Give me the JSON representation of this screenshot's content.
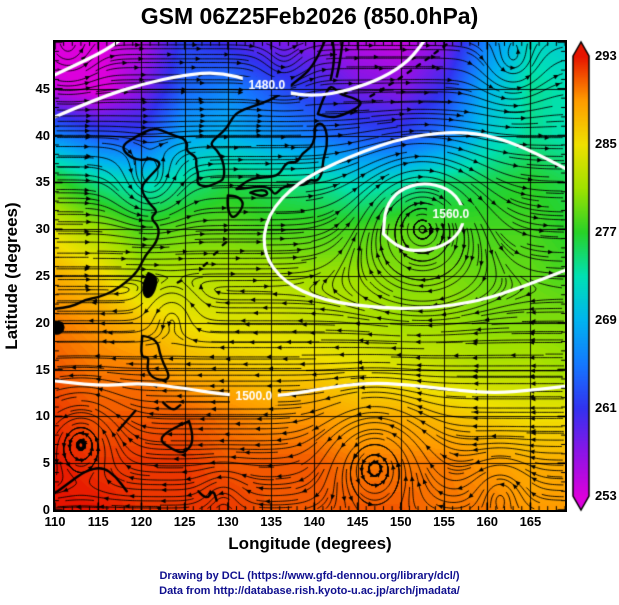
{
  "title": "GSM 06Z25Feb2026 (850.0hPa)",
  "axes": {
    "xlabel": "Longitude (degrees)",
    "ylabel": "Latitude (degrees)",
    "x_ticks": [
      110,
      115,
      120,
      125,
      130,
      135,
      140,
      145,
      150,
      155,
      160,
      165
    ],
    "y_ticks": [
      0,
      5,
      10,
      15,
      20,
      25,
      30,
      35,
      40,
      45
    ],
    "x_range": [
      110,
      169
    ],
    "y_range": [
      0,
      50
    ]
  },
  "colorbar": {
    "min": 253,
    "max": 293,
    "ticks": [
      293,
      285,
      277,
      269,
      261,
      253
    ],
    "stops": [
      [
        253,
        "#dc00dc"
      ],
      [
        257,
        "#8c14e6"
      ],
      [
        261,
        "#3232f0"
      ],
      [
        265,
        "#1478ff"
      ],
      [
        269,
        "#00b4f0"
      ],
      [
        273,
        "#00e1b4"
      ],
      [
        277,
        "#28d228"
      ],
      [
        281,
        "#a0e100"
      ],
      [
        285,
        "#f0e100"
      ],
      [
        289,
        "#ff9b00"
      ],
      [
        293,
        "#e61400"
      ]
    ]
  },
  "footer": {
    "line1": "Drawing by DCL (https://www.gfd-dennou.org/library/dcl/)",
    "line2": "Data from http://database.rish.kyoto-u.ac.jp/arch/jmadata/"
  },
  "chart_data": {
    "type": "heatmap",
    "title": "GSM 06Z25Feb2026 (850.0hPa)",
    "xlabel": "Longitude (degrees)",
    "ylabel": "Latitude (degrees)",
    "field": "850 hPa temperature shading (K) with geopotential height contours and wind streamlines",
    "lons": [
      110,
      115,
      120,
      125,
      130,
      135,
      140,
      145,
      150,
      155,
      160,
      165,
      169
    ],
    "lats": [
      50,
      45,
      40,
      35,
      30,
      25,
      20,
      15,
      10,
      5,
      0
    ],
    "temps": [
      [
        252,
        253,
        255,
        262,
        260,
        258,
        257,
        255,
        254,
        257,
        266,
        272,
        271
      ],
      [
        254,
        252,
        257,
        264,
        266,
        263,
        261,
        258,
        257,
        261,
        269,
        274,
        273
      ],
      [
        266,
        263,
        262,
        268,
        269,
        267,
        265,
        263,
        262,
        265,
        271,
        274,
        273
      ],
      [
        278,
        274,
        272,
        274,
        276,
        275,
        274,
        272,
        273,
        275,
        276,
        277,
        276
      ],
      [
        284,
        281,
        278,
        279,
        279,
        278,
        278,
        278,
        279,
        278,
        278,
        278,
        277
      ],
      [
        288,
        286,
        282,
        282,
        282,
        282,
        281,
        281,
        280,
        280,
        279,
        279,
        278
      ],
      [
        290,
        289,
        287,
        285,
        284,
        284,
        283,
        282,
        281,
        281,
        280,
        280,
        280
      ],
      [
        291,
        290,
        290,
        288,
        287,
        286,
        286,
        285,
        284,
        283,
        282,
        282,
        281
      ],
      [
        292,
        291,
        291,
        291,
        290,
        289,
        289,
        288,
        288,
        287,
        286,
        285,
        285
      ],
      [
        293,
        292,
        292,
        292,
        291,
        291,
        291,
        290,
        290,
        290,
        289,
        288,
        288
      ],
      [
        293,
        293,
        292,
        292,
        292,
        291,
        291,
        291,
        291,
        290,
        290,
        289,
        289
      ]
    ],
    "contours": [
      {
        "label": "1480.0",
        "label_pos": [
          134.5,
          45.3
        ],
        "points": [
          [
            110,
            42
          ],
          [
            115,
            44
          ],
          [
            120,
            45.5
          ],
          [
            125,
            46.5
          ],
          [
            129,
            46.8
          ],
          [
            133,
            45.8
          ],
          [
            136.5,
            44.6
          ],
          [
            140,
            44.2
          ],
          [
            144,
            44.8
          ],
          [
            148,
            46.2
          ],
          [
            151,
            48
          ],
          [
            153,
            50.5
          ]
        ]
      },
      {
        "label": "",
        "points": [
          [
            110,
            46.5
          ],
          [
            113,
            47.8
          ],
          [
            116,
            49.2
          ],
          [
            118,
            50.5
          ]
        ]
      },
      {
        "label": "1560.0",
        "label_pos": [
          155.8,
          31.6
        ],
        "points": [
          [
            148,
            29.5
          ],
          [
            149.5,
            28
          ],
          [
            152.5,
            27.6
          ],
          [
            155.5,
            28.4
          ],
          [
            157.3,
            30.3
          ],
          [
            157.2,
            32.6
          ],
          [
            155.5,
            34.4
          ],
          [
            152.5,
            35
          ],
          [
            149.8,
            34.2
          ],
          [
            148.2,
            32.3
          ],
          [
            148,
            29.5
          ]
        ]
      },
      {
        "label": "",
        "points": [
          [
            169,
            36.5
          ],
          [
            164,
            39
          ],
          [
            158,
            40.5
          ],
          [
            151,
            40
          ],
          [
            144,
            37.8
          ],
          [
            138,
            35
          ],
          [
            134.5,
            31.5
          ],
          [
            134,
            27.5
          ],
          [
            136.5,
            24.3
          ],
          [
            141,
            22.4
          ],
          [
            147,
            21.6
          ],
          [
            153,
            21.5
          ],
          [
            159,
            22.3
          ],
          [
            164,
            23.8
          ],
          [
            169,
            25.6
          ]
        ]
      },
      {
        "label": "1500.0",
        "label_pos": [
          133,
          12.1
        ],
        "points": [
          [
            110,
            13.8
          ],
          [
            115,
            13.2
          ],
          [
            120,
            13.6
          ],
          [
            125,
            13
          ],
          [
            129,
            12.4
          ],
          [
            133,
            12.1
          ],
          [
            137,
            12.3
          ],
          [
            141,
            13
          ],
          [
            146,
            13.6
          ],
          [
            151,
            13.4
          ],
          [
            156,
            12.8
          ],
          [
            161,
            12.5
          ],
          [
            165,
            12.8
          ],
          [
            169,
            13.2
          ]
        ]
      }
    ],
    "vortices": [
      {
        "lon": 152.5,
        "lat": 31.5,
        "s": -0.55,
        "r": 6.5
      },
      {
        "lon": 121,
        "lat": 34.5,
        "s": 0.85,
        "r": 3.5
      },
      {
        "lon": 111.5,
        "lat": 48.5,
        "s": 0.9,
        "r": 3
      },
      {
        "lon": 136.5,
        "lat": 47,
        "s": 0.55,
        "r": 2.8
      },
      {
        "lon": 163,
        "lat": 47,
        "s": 0.8,
        "r": 3.5
      },
      {
        "lon": 113,
        "lat": 8,
        "s": 0.95,
        "r": 4
      },
      {
        "lon": 147,
        "lat": 5.5,
        "s": 0.9,
        "r": 5
      },
      {
        "lon": 161.5,
        "lat": 2.5,
        "s": 0.8,
        "r": 3
      },
      {
        "lon": 123.5,
        "lat": 21,
        "s": 0.5,
        "r": 2.5
      },
      {
        "lon": 129.5,
        "lat": 2,
        "s": 0.6,
        "r": 2.5
      }
    ],
    "flow": {
      "u_north": 1.1,
      "u_south": -0.95,
      "lat_shear": 24,
      "shear_width": 3.5
    }
  }
}
